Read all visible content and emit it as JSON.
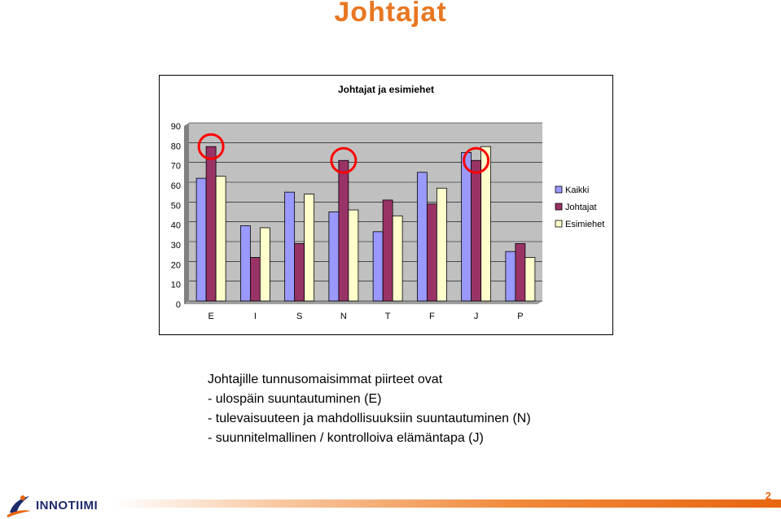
{
  "slide": {
    "title": "Johtajat",
    "page_number": "2"
  },
  "colors": {
    "title": "#e87722",
    "kaikki": "#9999ff",
    "johtajat": "#993366",
    "esimiehet": "#ffffcc",
    "plot_bg": "#c0c0c0",
    "highlight": "#ff0000"
  },
  "chart_data": {
    "type": "bar",
    "title": "Johtajat ja esimiehet",
    "categories": [
      "E",
      "I",
      "S",
      "N",
      "T",
      "F",
      "J",
      "P"
    ],
    "series": [
      {
        "name": "Kaikki",
        "values": [
          62,
          38,
          55,
          45,
          35,
          65,
          75,
          25
        ]
      },
      {
        "name": "Johtajat",
        "values": [
          78,
          22,
          29,
          71,
          51,
          49,
          71,
          29
        ]
      },
      {
        "name": "Esimiehet",
        "values": [
          63,
          37,
          54,
          46,
          43,
          57,
          78,
          22
        ]
      }
    ],
    "ylim": [
      0,
      90
    ],
    "yticks": [
      0,
      10,
      20,
      30,
      40,
      50,
      60,
      70,
      80,
      90
    ],
    "grid": true,
    "legend": "right",
    "highlighted_categories": [
      "E",
      "N",
      "J"
    ]
  },
  "bullets": {
    "intro": "Johtajille tunnusomaisimmat piirteet ovat",
    "items": [
      "- ulospäin suuntautuminen (E)",
      "- tulevaisuuteen ja mahdollisuuksiin suuntautuminen (N)",
      "- suunnitelmallinen / kontrolloiva elämäntapa (J)"
    ]
  },
  "footer": {
    "logo_text": "INNOTIIMI"
  }
}
